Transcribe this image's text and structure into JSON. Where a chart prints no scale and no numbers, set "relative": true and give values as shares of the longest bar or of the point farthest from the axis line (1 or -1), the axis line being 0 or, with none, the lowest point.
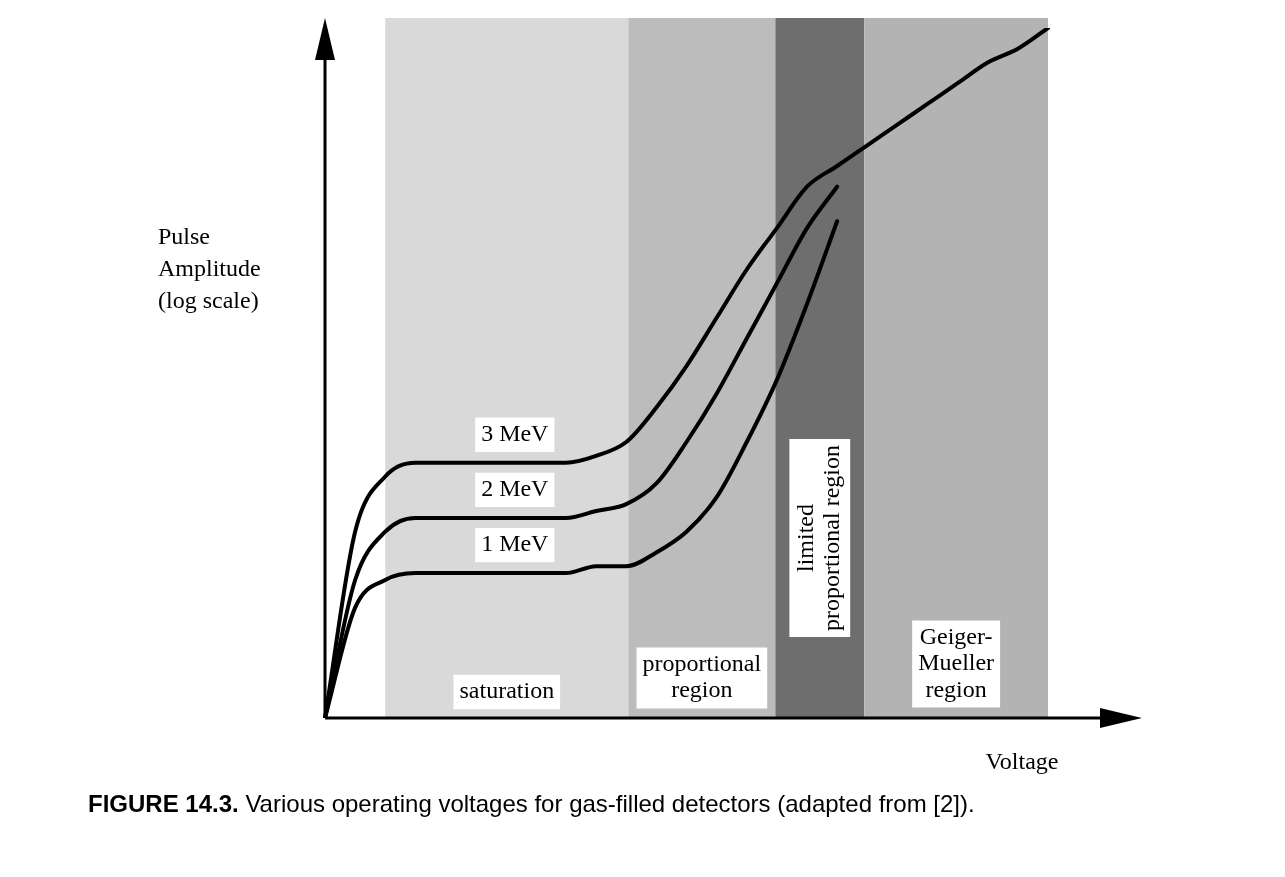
{
  "chart_data": {
    "type": "line",
    "relative": true,
    "ylabel": "Pulse\nAmplitude\n(log scale)",
    "xlabel": "Voltage",
    "categories": [
      null,
      null,
      null,
      null,
      null,
      null,
      null,
      null,
      null,
      null,
      null,
      null,
      null,
      null,
      null,
      null,
      null,
      null,
      null,
      null,
      null,
      null,
      null,
      null,
      null
    ],
    "series": [
      {
        "name": "3 MeV",
        "color": "#000000",
        "values": [
          0,
          0.27,
          0.35,
          0.37,
          0.37,
          0.37,
          0.37,
          0.37,
          0.37,
          0.38,
          0.4,
          0.45,
          0.51,
          0.58,
          0.65,
          0.71,
          0.77,
          0.8,
          0.83,
          0.86,
          0.89,
          0.92,
          0.95,
          0.97,
          1
        ]
      },
      {
        "name": "2 MeV",
        "color": "#000000",
        "values": [
          0,
          0.2,
          0.27,
          0.29,
          0.29,
          0.29,
          0.29,
          0.29,
          0.29,
          0.3,
          0.31,
          0.34,
          0.4,
          0.47,
          0.55,
          0.63,
          0.71,
          0.77,
          null,
          null,
          null,
          null,
          null,
          null,
          null
        ]
      },
      {
        "name": "1 MeV",
        "color": "#000000",
        "values": [
          0,
          0.16,
          0.2,
          0.21,
          0.21,
          0.21,
          0.21,
          0.21,
          0.21,
          0.22,
          0.22,
          0.24,
          0.27,
          0.32,
          0.4,
          0.49,
          0.6,
          0.72,
          null,
          null,
          null,
          null,
          null,
          null,
          null
        ]
      }
    ],
    "marker": "none",
    "line_style": "solid",
    "legend": false,
    "annotations": [
      "saturation",
      "proportional\nregion",
      "limited\nproportional region",
      "Geiger-\nMueller\nregion",
      "FIGURE 14.3. Various operating voltages for gas-filled detectors (adapted from [2])."
    ]
  }
}
